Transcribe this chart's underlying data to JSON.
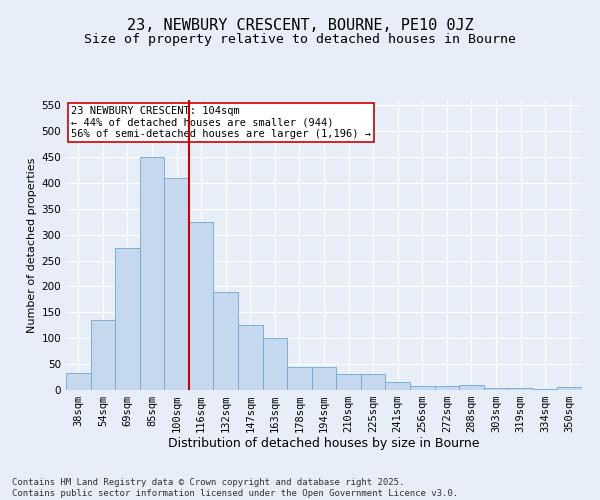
{
  "title1": "23, NEWBURY CRESCENT, BOURNE, PE10 0JZ",
  "title2": "Size of property relative to detached houses in Bourne",
  "xlabel": "Distribution of detached houses by size in Bourne",
  "ylabel": "Number of detached properties",
  "categories": [
    "38sqm",
    "54sqm",
    "69sqm",
    "85sqm",
    "100sqm",
    "116sqm",
    "132sqm",
    "147sqm",
    "163sqm",
    "178sqm",
    "194sqm",
    "210sqm",
    "225sqm",
    "241sqm",
    "256sqm",
    "272sqm",
    "288sqm",
    "303sqm",
    "319sqm",
    "334sqm",
    "350sqm"
  ],
  "values": [
    33,
    135,
    275,
    450,
    410,
    325,
    190,
    125,
    101,
    44,
    44,
    30,
    30,
    16,
    7,
    7,
    9,
    3,
    3,
    2,
    6
  ],
  "bar_color": "#c5d8ed",
  "bar_edge_color": "#6fa8d0",
  "vline_x": 4.5,
  "vline_color": "#cc0000",
  "annotation_line1": "23 NEWBURY CRESCENT: 104sqm",
  "annotation_line2": "← 44% of detached houses are smaller (944)",
  "annotation_line3": "56% of semi-detached houses are larger (1,196) →",
  "annotation_box_color": "#ffffff",
  "annotation_box_edge": "#cc0000",
  "ylim": [
    0,
    560
  ],
  "yticks": [
    0,
    50,
    100,
    150,
    200,
    250,
    300,
    350,
    400,
    450,
    500,
    550
  ],
  "bg_color": "#e8eef7",
  "plot_bg": "#e8eef7",
  "footer": "Contains HM Land Registry data © Crown copyright and database right 2025.\nContains public sector information licensed under the Open Government Licence v3.0.",
  "title1_fontsize": 11,
  "title2_fontsize": 9.5,
  "xlabel_fontsize": 9,
  "ylabel_fontsize": 8,
  "tick_fontsize": 7.5,
  "annotation_fontsize": 7.5,
  "footer_fontsize": 6.5
}
